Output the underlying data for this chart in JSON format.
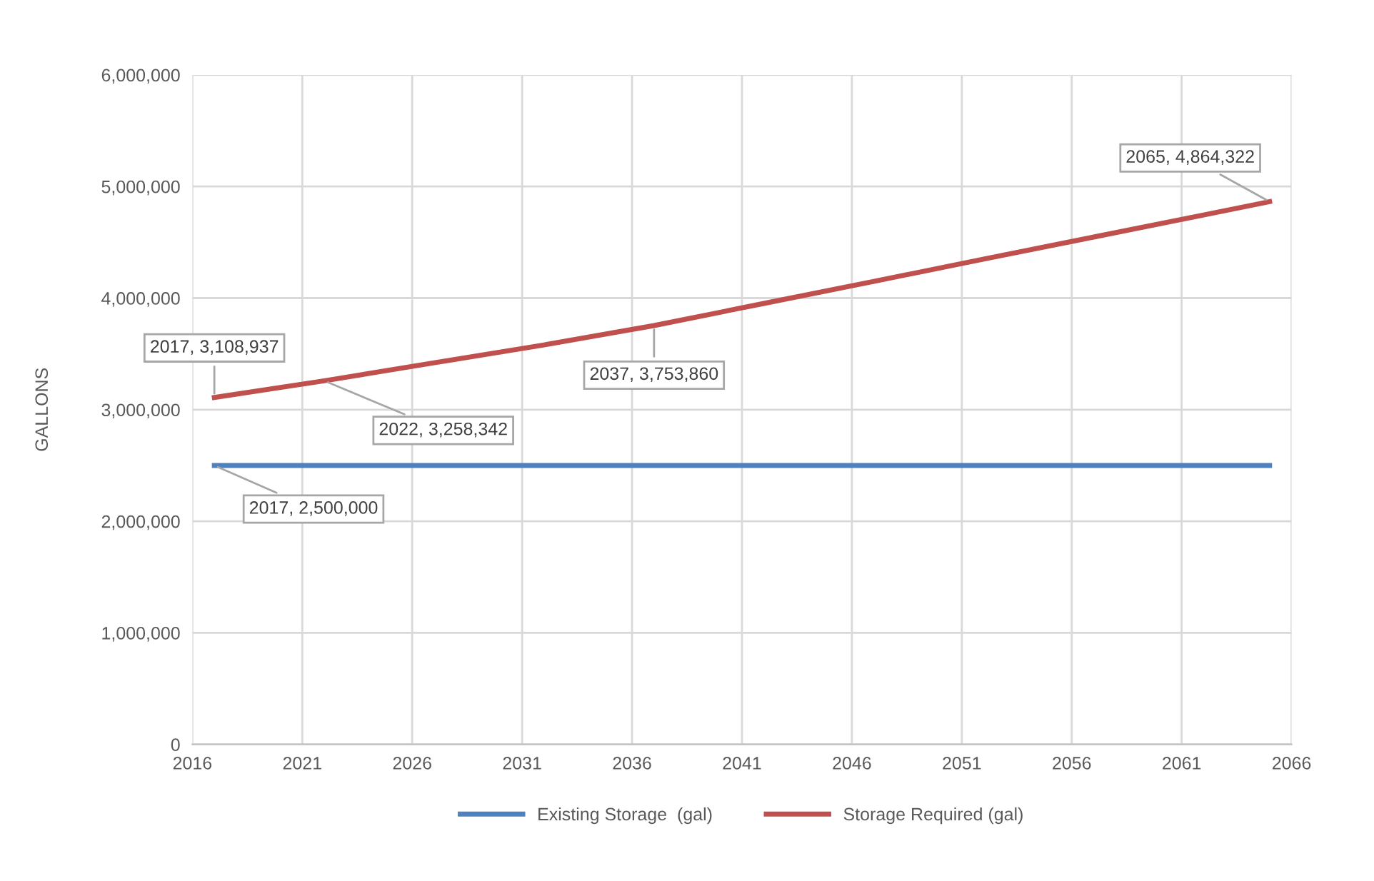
{
  "chart_data": {
    "type": "line",
    "ylabel": "GALLONS",
    "xlim": [
      2016,
      2066
    ],
    "xticks": [
      2016,
      2021,
      2026,
      2031,
      2036,
      2041,
      2046,
      2051,
      2056,
      2061,
      2066
    ],
    "ylim": [
      0,
      6000000
    ],
    "yticks": [
      {
        "value": 0,
        "label": "0"
      },
      {
        "value": 1000000,
        "label": "1,000,000"
      },
      {
        "value": 2000000,
        "label": "2,000,000"
      },
      {
        "value": 3000000,
        "label": "3,000,000"
      },
      {
        "value": 4000000,
        "label": "4,000,000"
      },
      {
        "value": 5000000,
        "label": "5,000,000"
      },
      {
        "value": 6000000,
        "label": "6,000,000"
      }
    ],
    "grid": true,
    "legend": "bottom",
    "marker": "none",
    "line_style": "solid",
    "series": [
      {
        "name": "Existing Storage  (gal)",
        "color": "#4f81bd",
        "x": [
          2017,
          2065
        ],
        "values": [
          2500000,
          2500000
        ]
      },
      {
        "name": "Storage Required (gal)",
        "color": "#c0504d",
        "x": [
          2017,
          2022,
          2027,
          2032,
          2037,
          2042,
          2047,
          2052,
          2057,
          2062,
          2065
        ],
        "values": [
          3108937,
          3258342,
          3420000,
          3580000,
          3753860,
          3952000,
          4150000,
          4349000,
          4547000,
          4745000,
          4864322
        ]
      }
    ],
    "annotations": [
      {
        "text": "2017, 3,108,937",
        "x": 2017,
        "y": 3108937
      },
      {
        "text": "2022, 3,258,342",
        "x": 2022,
        "y": 3258342
      },
      {
        "text": "2037, 3,753,860",
        "x": 2037,
        "y": 3753860
      },
      {
        "text": "2065, 4,864,322",
        "x": 2065,
        "y": 4864322
      },
      {
        "text": "2017, 2,500,000",
        "x": 2017,
        "y": 2500000
      }
    ]
  }
}
